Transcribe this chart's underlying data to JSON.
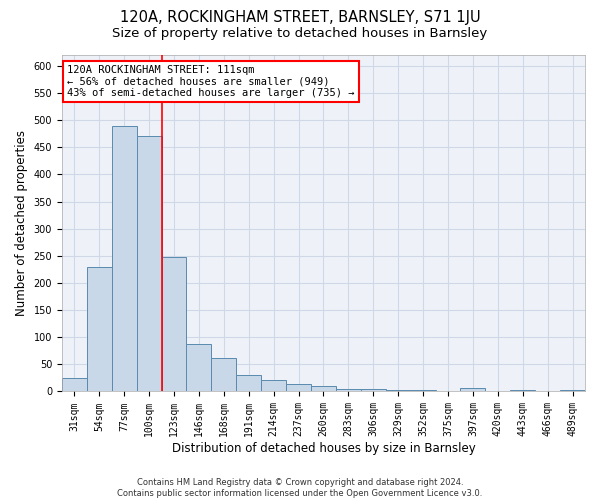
{
  "title": "120A, ROCKINGHAM STREET, BARNSLEY, S71 1JU",
  "subtitle": "Size of property relative to detached houses in Barnsley",
  "xlabel": "Distribution of detached houses by size in Barnsley",
  "ylabel": "Number of detached properties",
  "categories": [
    "31sqm",
    "54sqm",
    "77sqm",
    "100sqm",
    "123sqm",
    "146sqm",
    "168sqm",
    "191sqm",
    "214sqm",
    "237sqm",
    "260sqm",
    "283sqm",
    "306sqm",
    "329sqm",
    "352sqm",
    "375sqm",
    "397sqm",
    "420sqm",
    "443sqm",
    "466sqm",
    "489sqm"
  ],
  "values": [
    25,
    230,
    490,
    470,
    248,
    88,
    62,
    30,
    22,
    13,
    10,
    5,
    4,
    3,
    2,
    1,
    7,
    1,
    3,
    1,
    3
  ],
  "bar_color": "#c8d8e8",
  "bar_edge_color": "#5a8ab0",
  "grid_color": "#d0d8e8",
  "background_color": "#eef2f8",
  "red_line_x": 3.5,
  "annotation_text": "120A ROCKINGHAM STREET: 111sqm\n← 56% of detached houses are smaller (949)\n43% of semi-detached houses are larger (735) →",
  "annotation_box_color": "white",
  "annotation_box_edge": "red",
  "footer": "Contains HM Land Registry data © Crown copyright and database right 2024.\nContains public sector information licensed under the Open Government Licence v3.0.",
  "ylim": [
    0,
    620
  ],
  "yticks": [
    0,
    50,
    100,
    150,
    200,
    250,
    300,
    350,
    400,
    450,
    500,
    550,
    600
  ],
  "title_fontsize": 10.5,
  "subtitle_fontsize": 9.5,
  "tick_fontsize": 7,
  "ylabel_fontsize": 8.5,
  "xlabel_fontsize": 8.5,
  "annotation_fontsize": 7.5,
  "footer_fontsize": 6
}
